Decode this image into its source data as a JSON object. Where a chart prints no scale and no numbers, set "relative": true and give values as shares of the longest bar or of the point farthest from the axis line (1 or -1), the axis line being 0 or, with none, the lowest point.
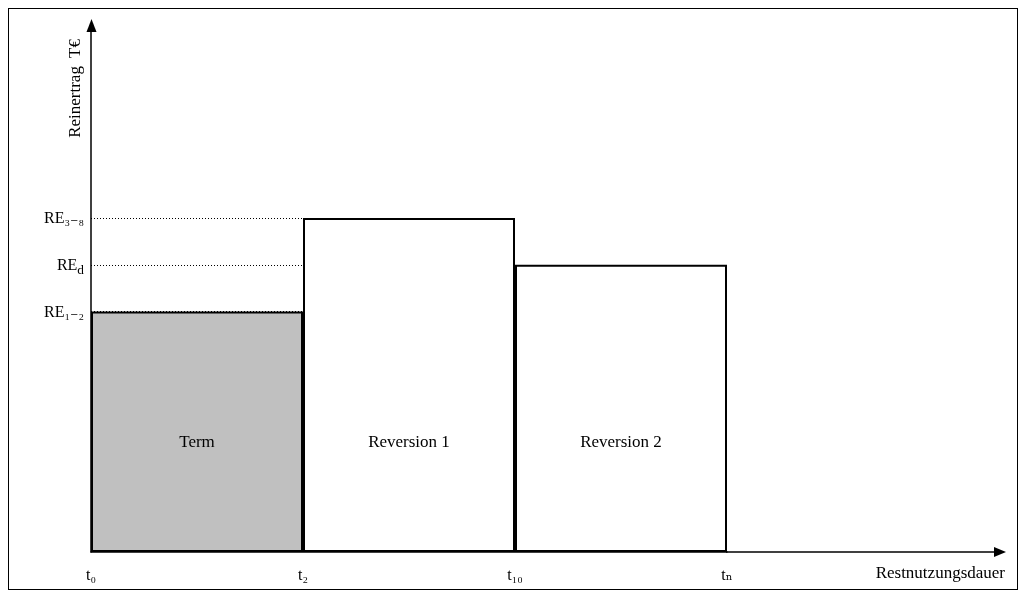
{
  "chart_data": {
    "type": "bar",
    "relative": true,
    "ylabel": "Reinertrag  T€",
    "categories": [
      "Term",
      "Reversion 1",
      "Reversion 2"
    ],
    "values": [
      0.72,
      1,
      0.86
    ],
    "colors": [
      "#c0c0c0",
      "#ffffff",
      "#ffffff"
    ],
    "ref_lines": [
      {
        "axis": "y",
        "value": 1,
        "label": "RE₃₋₈",
        "line_style": "dotted"
      },
      {
        "axis": "y",
        "value": 0.86,
        "label": "RE$_{d}$",
        "line_style": "dotted"
      },
      {
        "axis": "y",
        "value": 0.72,
        "label": "RE₁₋₂",
        "line_style": "dotted"
      }
    ],
    "annotations": [
      "t₀",
      "t₂",
      "t₁₀",
      "tₙ",
      "Restnutzungsdauer"
    ],
    "grid": false
  }
}
